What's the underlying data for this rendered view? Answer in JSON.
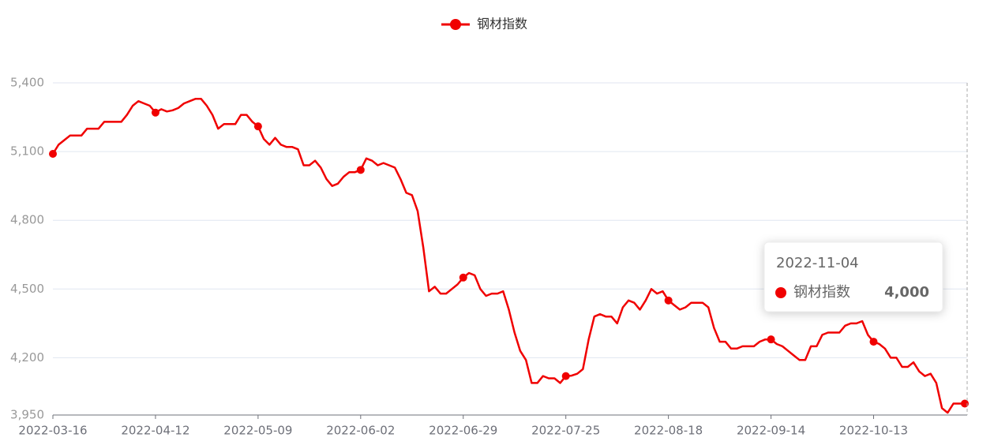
{
  "chart_data": {
    "type": "line",
    "categories": [
      "2022-03-16",
      null,
      null,
      null,
      null,
      null,
      null,
      null,
      null,
      null,
      null,
      null,
      null,
      null,
      null,
      null,
      null,
      null,
      "2022-04-12",
      null,
      null,
      null,
      null,
      null,
      null,
      null,
      null,
      null,
      null,
      null,
      null,
      null,
      null,
      null,
      null,
      null,
      "2022-05-09",
      null,
      null,
      null,
      null,
      null,
      null,
      null,
      null,
      null,
      null,
      null,
      null,
      null,
      null,
      null,
      null,
      null,
      "2022-06-02",
      null,
      null,
      null,
      null,
      null,
      null,
      null,
      null,
      null,
      null,
      null,
      null,
      null,
      null,
      null,
      null,
      null,
      "2022-06-29",
      null,
      null,
      null,
      null,
      null,
      null,
      null,
      null,
      null,
      null,
      null,
      null,
      null,
      null,
      null,
      null,
      null,
      "2022-07-25",
      null,
      null,
      null,
      null,
      null,
      null,
      null,
      null,
      null,
      null,
      null,
      null,
      null,
      null,
      null,
      null,
      null,
      "2022-08-18",
      null,
      null,
      null,
      null,
      null,
      null,
      null,
      null,
      null,
      null,
      null,
      null,
      null,
      null,
      null,
      null,
      null,
      "2022-09-14",
      null,
      null,
      null,
      null,
      null,
      null,
      null,
      null,
      null,
      null,
      null,
      null,
      null,
      null,
      null,
      null,
      null,
      "2022-10-13",
      null,
      null,
      null,
      null,
      null,
      null,
      null,
      null,
      null,
      null,
      null,
      null,
      null,
      null,
      null,
      null
    ],
    "series": [
      {
        "name": "钢材指数",
        "color": "#f00000",
        "values": [
          5090,
          5130,
          5150,
          5170,
          5170,
          5170,
          5200,
          5200,
          5200,
          5230,
          5230,
          5230,
          5230,
          5260,
          5300,
          5320,
          5310,
          5300,
          5270,
          5285,
          5275,
          5280,
          5290,
          5310,
          5320,
          5330,
          5330,
          5300,
          5260,
          5200,
          5220,
          5220,
          5220,
          5260,
          5260,
          5230,
          5210,
          5155,
          5130,
          5160,
          5130,
          5120,
          5120,
          5110,
          5040,
          5040,
          5060,
          5030,
          4980,
          4950,
          4960,
          4990,
          5010,
          5010,
          5020,
          5070,
          5060,
          5040,
          5050,
          5040,
          5030,
          4980,
          4920,
          4910,
          4840,
          4680,
          4490,
          4510,
          4480,
          4480,
          4500,
          4520,
          4550,
          4570,
          4560,
          4500,
          4470,
          4480,
          4480,
          4490,
          4410,
          4310,
          4230,
          4190,
          4090,
          4090,
          4120,
          4110,
          4110,
          4090,
          4120,
          4122,
          4130,
          4150,
          4280,
          4380,
          4390,
          4380,
          4380,
          4350,
          4420,
          4450,
          4440,
          4410,
          4450,
          4500,
          4480,
          4490,
          4450,
          4430,
          4410,
          4420,
          4440,
          4440,
          4440,
          4420,
          4330,
          4270,
          4270,
          4240,
          4240,
          4250,
          4250,
          4250,
          4270,
          4280,
          4280,
          4260,
          4250,
          4230,
          4210,
          4190,
          4190,
          4250,
          4250,
          4300,
          4310,
          4310,
          4310,
          4340,
          4350,
          4350,
          4360,
          4300,
          4270,
          4260,
          4240,
          4200,
          4200,
          4160,
          4160,
          4180,
          4140,
          4120,
          4130,
          4090,
          3980,
          3960,
          4000,
          4000,
          4000
        ]
      }
    ],
    "ylim": [
      3950,
      5400
    ],
    "yticks": [
      {
        "value": 3950,
        "label": "3,950"
      },
      {
        "value": 4200,
        "label": "4,200"
      },
      {
        "value": 4500,
        "label": "4,500"
      },
      {
        "value": 4800,
        "label": "4,800"
      },
      {
        "value": 5100,
        "label": "5,100"
      },
      {
        "value": 5400,
        "label": "5,400"
      }
    ],
    "grid": true,
    "legend": "top",
    "tooltip": {
      "x": "2022-11-04",
      "value": {
        "value": 4000,
        "label": "4,000"
      }
    }
  }
}
